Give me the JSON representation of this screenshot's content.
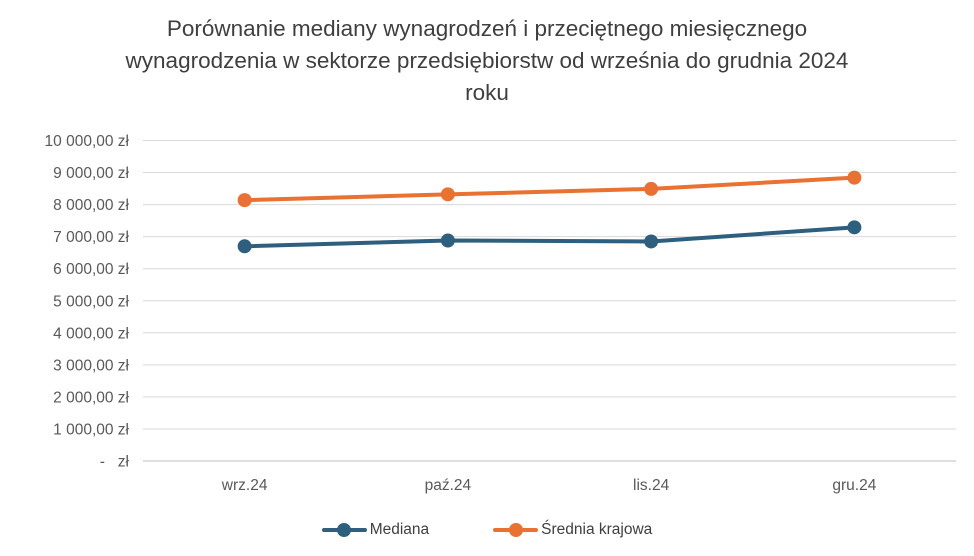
{
  "page": {
    "background": "#FFFFFF"
  },
  "colors": {
    "title_text": "#3F3F3F",
    "axis_text": "#595959",
    "gridline": "#D9D9D9",
    "axis_line": "#BFBFBF",
    "series_mediana": "#2E5F7E",
    "series_srednia": "#E97132"
  },
  "chart_data": {
    "type": "line",
    "title": "Porównanie mediany wynagrodzeń i przeciętnego miesięcznego wynagrodzenia w sektorze przedsiębiorstw od września do grudnia 2024 roku",
    "categories": [
      "wrz.24",
      "paź.24",
      "lis.24",
      "gru.24"
    ],
    "series": [
      {
        "name": "Mediana",
        "color": "#2E5F7E",
        "values": [
          6700,
          6880,
          6850,
          7290
        ]
      },
      {
        "name": "Średnia krajowa",
        "color": "#E97132",
        "values": [
          8140,
          8320,
          8490,
          8840
        ]
      }
    ],
    "xlabel": "",
    "ylabel": "",
    "ylim": [
      0,
      10000
    ],
    "ytick_step": 1000,
    "ytick_labels": [
      "-   zł",
      "1 000,00 zł",
      "2 000,00 zł",
      "3 000,00 zł",
      "4 000,00 zł",
      "5 000,00 zł",
      "6 000,00 zł",
      "7 000,00 zł",
      "8 000,00 zł",
      "9 000,00 zł",
      "10 000,00 zł"
    ],
    "currency_unit": "zł",
    "grid": "horizontal",
    "legend_position": "bottom",
    "marker": "circle"
  }
}
